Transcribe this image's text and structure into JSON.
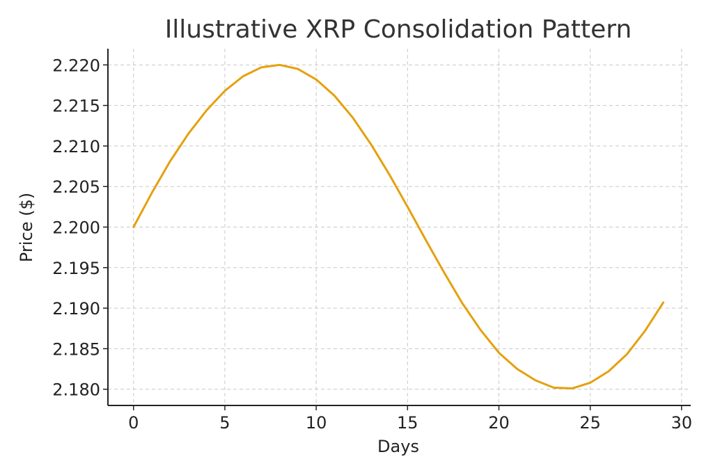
{
  "chart_data": {
    "type": "line",
    "title": "Illustrative XRP Consolidation Pattern",
    "xlabel": "Days",
    "ylabel": "Price ($)",
    "xlim": [
      -1.4,
      30.5
    ],
    "ylim": [
      2.178,
      2.222
    ],
    "xticks": [
      0,
      5,
      10,
      15,
      20,
      25,
      30
    ],
    "xtick_labels": [
      "0",
      "5",
      "10",
      "15",
      "20",
      "25",
      "30"
    ],
    "yticks": [
      2.18,
      2.185,
      2.19,
      2.195,
      2.2,
      2.205,
      2.21,
      2.215,
      2.22
    ],
    "ytick_labels": [
      "2.180",
      "2.185",
      "2.190",
      "2.195",
      "2.200",
      "2.205",
      "2.210",
      "2.215",
      "2.220"
    ],
    "grid": true,
    "series": [
      {
        "color": "#e5a00d",
        "x": [
          0,
          1,
          2,
          3,
          4,
          5,
          6,
          7,
          8,
          9,
          10,
          11,
          12,
          13,
          14,
          15,
          16,
          17,
          18,
          19,
          20,
          21,
          22,
          23,
          24,
          25,
          26,
          27,
          28,
          29
        ],
        "y": [
          2.2,
          2.2042,
          2.2081,
          2.2115,
          2.2144,
          2.2168,
          2.2186,
          2.2197,
          2.22,
          2.2195,
          2.2182,
          2.2162,
          2.2135,
          2.2102,
          2.2065,
          2.2025,
          2.1984,
          2.1944,
          2.1906,
          2.1873,
          2.1845,
          2.1825,
          2.1811,
          2.1802,
          2.1801,
          2.1808,
          2.1822,
          2.1843,
          2.1872,
          2.1907
        ]
      }
    ]
  }
}
